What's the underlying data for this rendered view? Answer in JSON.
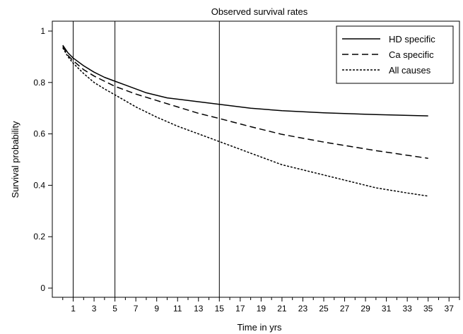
{
  "chart_data": {
    "type": "line",
    "title": "Observed survival rates",
    "xlabel": "Time in yrs",
    "ylabel": "Survival probability",
    "xlim": [
      -1,
      38
    ],
    "ylim": [
      0,
      1
    ],
    "x_ticks": [
      1,
      3,
      5,
      7,
      9,
      11,
      13,
      15,
      17,
      19,
      21,
      23,
      25,
      27,
      29,
      31,
      33,
      35,
      37
    ],
    "y_ticks": [
      0,
      0.2,
      0.4,
      0.6,
      0.8,
      1
    ],
    "y_tick_labels": [
      "0",
      "0.2",
      "0.4",
      "0.6",
      "0.8",
      "1"
    ],
    "vertical_reference_lines": [
      1,
      5,
      15
    ],
    "legend_position": "top-right",
    "series": [
      {
        "name": "HD specific",
        "line_style": "solid",
        "x": [
          0,
          0.5,
          1,
          2,
          3,
          4,
          5,
          6,
          7,
          8,
          9,
          10,
          12,
          15,
          18,
          21,
          25,
          30,
          35
        ],
        "y": [
          0.945,
          0.915,
          0.895,
          0.865,
          0.84,
          0.82,
          0.805,
          0.79,
          0.775,
          0.76,
          0.75,
          0.74,
          0.73,
          0.715,
          0.7,
          0.69,
          0.682,
          0.675,
          0.67
        ]
      },
      {
        "name": "Ca specific",
        "line_style": "dashed",
        "x": [
          0,
          0.5,
          1,
          2,
          3,
          4,
          5,
          7,
          9,
          11,
          13,
          15,
          18,
          21,
          25,
          30,
          35
        ],
        "y": [
          0.94,
          0.905,
          0.885,
          0.85,
          0.825,
          0.805,
          0.785,
          0.755,
          0.73,
          0.705,
          0.68,
          0.66,
          0.628,
          0.598,
          0.568,
          0.535,
          0.505
        ]
      },
      {
        "name": "All causes",
        "line_style": "dotted",
        "x": [
          0,
          0.5,
          1,
          2,
          3,
          4,
          5,
          7,
          9,
          11,
          13,
          15,
          18,
          21,
          25,
          30,
          33,
          35
        ],
        "y": [
          0.935,
          0.9,
          0.875,
          0.835,
          0.8,
          0.775,
          0.752,
          0.705,
          0.665,
          0.63,
          0.6,
          0.57,
          0.525,
          0.48,
          0.44,
          0.39,
          0.37,
          0.358
        ]
      }
    ]
  }
}
